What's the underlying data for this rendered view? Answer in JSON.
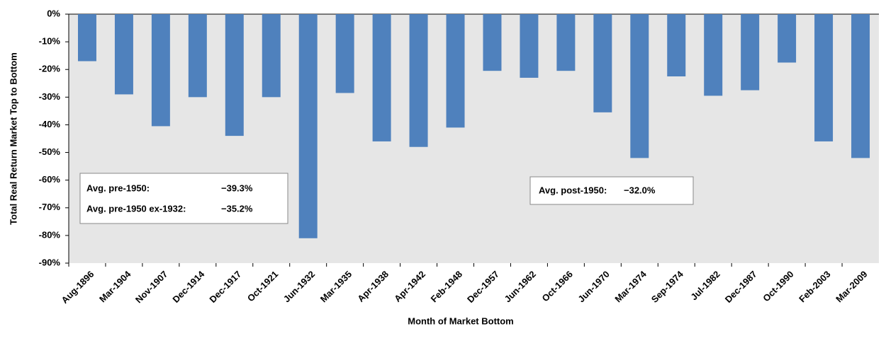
{
  "chart_data": {
    "type": "bar",
    "x_label": "Month of Market Bottom",
    "y_label": "Total Real Return Market Top to Bottom",
    "categories": [
      "Aug-1896",
      "Mar-1904",
      "Nov-1907",
      "Dec-1914",
      "Dec-1917",
      "Oct-1921",
      "Jun-1932",
      "Mar-1935",
      "Apr-1938",
      "Apr-1942",
      "Feb-1948",
      "Dec-1957",
      "Jun-1962",
      "Oct-1966",
      "Jun-1970",
      "Mar-1974",
      "Sep-1974",
      "Jul-1982",
      "Dec-1987",
      "Oct-1990",
      "Feb-2003",
      "Mar-2009"
    ],
    "values": [
      -17,
      -29,
      -40.5,
      -30,
      -44,
      -30,
      -81,
      -28.5,
      -46,
      -48,
      -41,
      -20.5,
      -23,
      -20.5,
      -35.5,
      -52,
      -22.5,
      -29.5,
      -27.5,
      -17.5,
      -46,
      -52
    ],
    "color": "#4f81bd",
    "ylim": [
      -90,
      0
    ],
    "yticks": [
      {
        "value": 0,
        "label": "0%"
      },
      {
        "value": -10,
        "label": "-10%"
      },
      {
        "value": -20,
        "label": "-20%"
      },
      {
        "value": -30,
        "label": "-30%"
      },
      {
        "value": -40,
        "label": "-40%"
      },
      {
        "value": -50,
        "label": "-50%"
      },
      {
        "value": -60,
        "label": "-60%"
      },
      {
        "value": -70,
        "label": "-70%"
      },
      {
        "value": -80,
        "label": "-80%"
      },
      {
        "value": -90,
        "label": "-90%"
      }
    ],
    "annotations": [
      {
        "lines": [
          [
            "Avg. pre-1950:",
            "−39.3%"
          ],
          [
            "Avg. pre-1950 ex-1932:",
            "−35.2%"
          ]
        ]
      },
      {
        "lines": [
          [
            "Avg. post-1950:",
            "−32.0%"
          ]
        ]
      }
    ]
  }
}
